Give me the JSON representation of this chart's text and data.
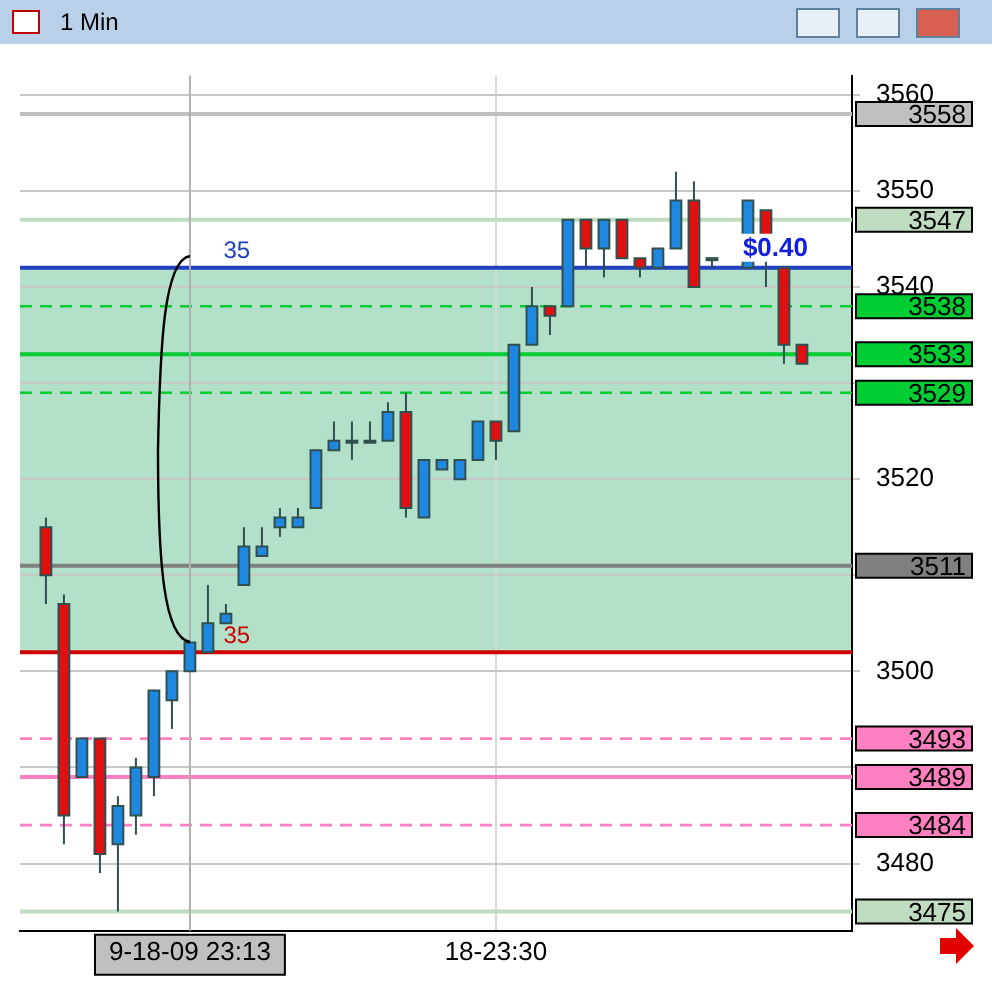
{
  "chart_data": {
    "type": "candlestick",
    "title": "1 Min",
    "categories": [
      null,
      null,
      null,
      null,
      null,
      null,
      null,
      null,
      "9-18-09 23:13",
      null,
      null,
      null,
      null,
      null,
      null,
      null,
      null,
      null,
      null,
      null,
      null,
      null,
      null,
      null,
      null,
      "18-23:30",
      null,
      null,
      null,
      null,
      null,
      null,
      null,
      null,
      null,
      null,
      null,
      null,
      null,
      null,
      null,
      null,
      null
    ],
    "ohlc": [
      [
        3515,
        3516,
        3507,
        3510
      ],
      [
        3507,
        3508,
        3482,
        3485
      ],
      [
        3489,
        3493,
        3489,
        3493
      ],
      [
        3493,
        3493,
        3479,
        3481
      ],
      [
        3482,
        3487,
        3475,
        3486
      ],
      [
        3485,
        3491,
        3483,
        3490
      ],
      [
        3489,
        3498,
        3487,
        3498
      ],
      [
        3497,
        3500,
        3494,
        3500
      ],
      [
        3500,
        3503,
        3500,
        3503
      ],
      [
        3502,
        3509,
        3502,
        3505
      ],
      [
        3505,
        3507,
        3505,
        3506
      ],
      [
        3509,
        3515,
        3509,
        3513
      ],
      [
        3512,
        3515,
        3512,
        3513
      ],
      [
        3515,
        3517,
        3514,
        3516
      ],
      [
        3515,
        3517,
        3515,
        3516
      ],
      [
        3517,
        3523,
        3517,
        3523
      ],
      [
        3523,
        3526,
        3523,
        3524
      ],
      [
        3524,
        3526,
        3522,
        3524
      ],
      [
        3524,
        3526,
        3524,
        3524
      ],
      [
        3524,
        3528,
        3524,
        3527
      ],
      [
        3527,
        3529,
        3516,
        3517
      ],
      [
        3516,
        3522,
        3516,
        3522
      ],
      [
        3521,
        3522,
        3521,
        3522
      ],
      [
        3520,
        3522,
        3520,
        3522
      ],
      [
        3522,
        3526,
        3522,
        3526
      ],
      [
        3526,
        3526,
        3522,
        3524
      ],
      [
        3525,
        3534,
        3525,
        3534
      ],
      [
        3534,
        3540,
        3534,
        3538
      ],
      [
        3538,
        3538,
        3535,
        3537
      ],
      [
        3538,
        3547,
        3538,
        3547
      ],
      [
        3547,
        3547,
        3542,
        3544
      ],
      [
        3544,
        3547,
        3541,
        3547
      ],
      [
        3547,
        3547,
        3543,
        3543
      ],
      [
        3543,
        3543,
        3541,
        3542
      ],
      [
        3542,
        3544,
        3542,
        3544
      ],
      [
        3544,
        3552,
        3544,
        3549
      ],
      [
        3549,
        3551,
        3540,
        3540
      ],
      [
        3543,
        3543,
        3542,
        3543
      ],
      null,
      [
        3542,
        3549,
        3542,
        3549
      ],
      [
        3548,
        3548,
        3540,
        3543
      ],
      [
        3542,
        3542,
        3532,
        3534
      ],
      [
        3534,
        3534,
        3532,
        3532
      ]
    ],
    "ylim": [
      3473,
      3562
    ],
    "yticks": [
      3480,
      {
        "value": 3490,
        "label": null
      },
      3500,
      {
        "value": 3510,
        "label": null
      },
      3520,
      {
        "value": 3530,
        "label": null
      },
      3540,
      3550,
      3560
    ],
    "grid": true,
    "legend": false,
    "bands": [
      {
        "axis": "y",
        "from": 3502,
        "to": 3542,
        "label": "$0.40",
        "color": "#b2e0c8"
      }
    ],
    "ref_lines": [
      {
        "axis": "y",
        "value": 3558,
        "label": "3558",
        "color": "#c0c0c0",
        "line_style": "solid"
      },
      {
        "axis": "y",
        "value": 3547,
        "label": "3547",
        "color": "#c0dcc0",
        "line_style": "solid"
      },
      {
        "axis": "y",
        "value": 3542,
        "color": "#2040c0",
        "line_style": "solid"
      },
      {
        "axis": "y",
        "value": 3538,
        "label": "3538",
        "color": "#00cc33",
        "line_style": "dashed"
      },
      {
        "axis": "y",
        "value": 3533,
        "label": "3533",
        "color": "#00cc33",
        "line_style": "solid"
      },
      {
        "axis": "y",
        "value": 3529,
        "label": "3529",
        "color": "#00cc33",
        "line_style": "dashed"
      },
      {
        "axis": "y",
        "value": 3511,
        "label": "3511",
        "color": "#808080",
        "line_style": "solid"
      },
      {
        "axis": "y",
        "value": 3502,
        "color": "#d00000",
        "line_style": "solid"
      },
      {
        "axis": "y",
        "value": 3493,
        "label": "3493",
        "color": "#ff80c0",
        "line_style": "dashed"
      },
      {
        "axis": "y",
        "value": 3489,
        "label": "3489",
        "color": "#ff80c0",
        "line_style": "solid"
      },
      {
        "axis": "y",
        "value": 3484,
        "label": "3484",
        "color": "#ff80c0",
        "line_style": "dashed"
      },
      {
        "axis": "y",
        "value": 3475,
        "label": "3475",
        "color": "#c0dcc0",
        "line_style": "solid"
      },
      {
        "axis": "x",
        "value": "9-18-09 23:13",
        "color": "#b0b0b0",
        "line_style": "solid"
      }
    ],
    "annotations": [
      {
        "text": "35",
        "y": 3542
      },
      {
        "text": "35",
        "y": 3502
      }
    ]
  }
}
